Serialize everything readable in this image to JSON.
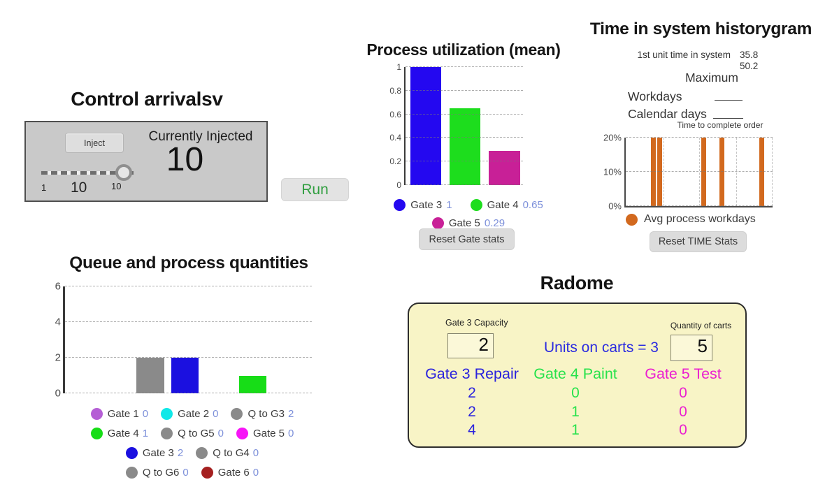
{
  "control": {
    "title": "Control arrivalsv",
    "inject_label": "Inject",
    "currently_injected_label": "Currently Injected",
    "injected_value": "10",
    "slider_min": "1",
    "slider_value": "10",
    "slider_max": "10",
    "run_label": "Run"
  },
  "process": {
    "title": "Process utilization (mean)",
    "reset_label": "Reset Gate stats",
    "legend_rows": [
      [
        {
          "label": "Gate 3",
          "value": "1",
          "color": "#2408f0"
        },
        {
          "label": "Gate 4",
          "value": "0.65",
          "color": "#1ddd1d"
        }
      ],
      [
        {
          "label": "Gate 5",
          "value": "0.29",
          "color": "#c82097"
        }
      ]
    ]
  },
  "time_system": {
    "title": "Time in system historygram",
    "first_unit_label": "1st unit time in system",
    "first_unit_value": "35.8",
    "maximum_value": "50.2",
    "maximum_label": "Maximum",
    "workdays_label": "Workdays",
    "calendar_days_label": "Calendar days",
    "axis_caption": "Time to complete order",
    "legend_label": "Avg process workdays",
    "reset_label": "Reset TIME Stats",
    "bar_color": "#d2691e"
  },
  "queue": {
    "title": "Queue and process quantities",
    "legend_rows": [
      [
        {
          "label": "Gate 1",
          "value": "0",
          "color": "#b55fd5"
        },
        {
          "label": "Gate 2",
          "value": "0",
          "color": "#10e8e8"
        },
        {
          "label": "Q to G3",
          "value": "2",
          "color": "#8a8a8a"
        }
      ],
      [
        {
          "label": "Gate 4",
          "value": "1",
          "color": "#17dd17"
        },
        {
          "label": "Q to G5",
          "value": "0",
          "color": "#8a8a8a"
        },
        {
          "label": "Gate 5",
          "value": "0",
          "color": "#f714f7"
        }
      ],
      [
        {
          "label": "Gate 3",
          "value": "2",
          "color": "#1b10e0"
        },
        {
          "label": "Q to G4",
          "value": "0",
          "color": "#8a8a8a"
        }
      ],
      [
        {
          "label": "Q to G6",
          "value": "0",
          "color": "#8a8a8a"
        },
        {
          "label": "Gate 6",
          "value": "0",
          "color": "#a52020"
        }
      ]
    ]
  },
  "radome": {
    "title": "Radome",
    "gate3_capacity_label": "Gate 3 Capacity",
    "gate3_capacity_value": "2",
    "units_on_carts_text": "Units on carts = 3",
    "quantity_of_carts_label": "Quantity of carts",
    "quantity_of_carts_value": "5",
    "columns": [
      {
        "header": "Gate 3 Repair",
        "color": "#2a22dd",
        "values": [
          "2",
          "2",
          "4"
        ]
      },
      {
        "header": "Gate 4 Paint",
        "color": "#27e24b",
        "values": [
          "0",
          "1",
          "1"
        ]
      },
      {
        "header": "Gate 5 Test",
        "color": "#ea1fd0",
        "values": [
          "0",
          "0",
          "0"
        ]
      }
    ]
  },
  "chart_data": [
    {
      "id": "process_utilization",
      "type": "bar",
      "title": "Process utilization (mean)",
      "categories": [
        "Gate 3",
        "Gate 4",
        "Gate 5"
      ],
      "values": [
        1,
        0.65,
        0.29
      ],
      "colors": [
        "#2408f0",
        "#1ddd1d",
        "#c82097"
      ],
      "ylim": [
        0,
        1
      ],
      "yticks": [
        1,
        0.8,
        0.6,
        0.4,
        0.2,
        0
      ],
      "ytick_labels": [
        "1",
        "0.8",
        "0.6",
        "0.4",
        "0.2",
        "0"
      ],
      "grid": "horizontal-dashed",
      "legend_position": "bottom",
      "bars_layout": [
        {
          "x": 0.04,
          "w": 0.265
        },
        {
          "x": 0.375,
          "w": 0.26
        },
        {
          "x": 0.71,
          "w": 0.265
        }
      ]
    },
    {
      "id": "queue_process_quantities",
      "type": "bar",
      "title": "Queue and process quantities",
      "categories": [
        "Q to G3",
        "Gate 3",
        "Gate 4"
      ],
      "values": [
        2,
        2,
        1
      ],
      "colors": [
        "#8a8a8a",
        "#1b10e0",
        "#17dd17"
      ],
      "ylim": [
        0,
        6
      ],
      "yticks": [
        6,
        4,
        2,
        0
      ],
      "ytick_labels": [
        "6",
        "4",
        "2",
        "0"
      ],
      "grid": "horizontal-dashed",
      "legend_position": "bottom",
      "bars_layout": [
        {
          "x": 0.29,
          "w": 0.113
        },
        {
          "x": 0.43,
          "w": 0.11
        },
        {
          "x": 0.704,
          "w": 0.112
        }
      ]
    },
    {
      "id": "time_in_system_histogram",
      "type": "bar",
      "title": "Time in system historygram",
      "xlabel": "Time to complete order",
      "series": [
        {
          "name": "Avg process workdays",
          "values": [
            20,
            20,
            20,
            20,
            20
          ]
        }
      ],
      "ylim": [
        0,
        20
      ],
      "yticks": [
        20,
        10,
        0
      ],
      "ytick_labels": [
        "20%",
        "10%",
        "0%"
      ],
      "grid": "both-dashed",
      "vgrid": [
        0.26,
        0.505,
        0.755,
        1.0
      ],
      "legend_position": "bottom",
      "bar_color": "#d2691e",
      "bars_layout": [
        {
          "x": 0.173,
          "w": 0.034
        },
        {
          "x": 0.212,
          "w": 0.034
        },
        {
          "x": 0.513,
          "w": 0.034
        },
        {
          "x": 0.638,
          "w": 0.034
        },
        {
          "x": 0.91,
          "w": 0.034
        }
      ]
    }
  ]
}
